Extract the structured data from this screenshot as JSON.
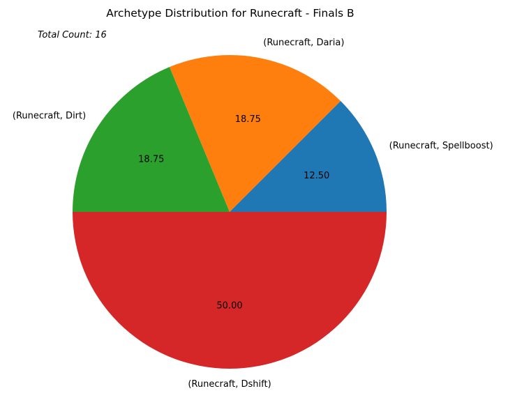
{
  "chart_data": {
    "type": "pie",
    "title": "Archetype Distribution for Runecraft - Finals B",
    "annotation": "Total Count: 16",
    "slices": [
      {
        "label": "(Runecraft, Spellboost)",
        "value": 2,
        "percent_label": "12.50",
        "color": "#1f77b4"
      },
      {
        "label": "(Runecraft, Daria)",
        "value": 3,
        "percent_label": "18.75",
        "color": "#ff7f0e"
      },
      {
        "label": "(Runecraft, Dirt)",
        "value": 3,
        "percent_label": "18.75",
        "color": "#2ca02c"
      },
      {
        "label": "(Runecraft, Dshift)",
        "value": 8,
        "percent_label": "50.00",
        "color": "#d62728"
      }
    ]
  }
}
